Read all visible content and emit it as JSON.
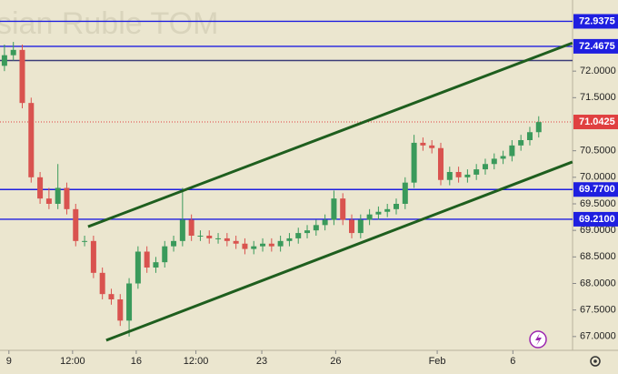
{
  "chart_data": {
    "type": "candlestick",
    "title": "sian Ruble TOM",
    "xlim": [
      -0.5,
      63.8
    ],
    "ylim": [
      66.74,
      73.34
    ],
    "xticks": [
      {
        "value": 0.5,
        "label": "9"
      },
      {
        "value": 7.65,
        "label": "12:00"
      },
      {
        "value": 14.8,
        "label": "16"
      },
      {
        "value": 21.5,
        "label": "12:00"
      },
      {
        "value": 28.9,
        "label": "23"
      },
      {
        "value": 37.2,
        "label": "26"
      },
      {
        "value": 48.6,
        "label": "Feb"
      },
      {
        "value": 57.1,
        "label": "6"
      }
    ],
    "yticks": [
      {
        "value": 72,
        "label": "72.0000"
      },
      {
        "value": 71.5,
        "label": "71.5000"
      },
      {
        "value": 70.5,
        "label": "70.5000"
      },
      {
        "value": 70,
        "label": "70.0000"
      },
      {
        "value": 69.5,
        "label": "69.5000"
      },
      {
        "value": 69,
        "label": "69.0000"
      },
      {
        "value": 68.5,
        "label": "68.5000"
      },
      {
        "value": 68,
        "label": "68.0000"
      },
      {
        "value": 67.5,
        "label": "67.5000"
      },
      {
        "value": 67,
        "label": "67.0000"
      }
    ],
    "up_color": "#3a9a5b",
    "down_color": "#d9534f",
    "open": [
      72.1,
      72.3,
      72.4,
      71.4,
      70.0,
      69.6,
      69.5,
      69.8,
      69.4,
      68.8,
      68.8,
      68.2,
      67.8,
      67.7,
      67.3,
      68.0,
      68.6,
      68.3,
      68.4,
      68.7,
      68.8,
      69.2,
      68.9,
      68.9,
      68.85,
      68.85,
      68.8,
      68.75,
      68.65,
      68.7,
      68.75,
      68.7,
      68.8,
      68.85,
      68.95,
      69.0,
      69.1,
      69.2,
      69.6,
      69.2,
      68.95,
      69.2,
      69.3,
      69.35,
      69.4,
      69.5,
      69.9,
      70.65,
      70.6,
      70.55,
      69.95,
      70.1,
      70.0,
      70.05,
      70.15,
      70.25,
      70.35,
      70.4,
      70.6,
      70.7,
      70.85
    ],
    "high": [
      72.5,
      72.55,
      72.5,
      71.5,
      70.1,
      69.8,
      70.25,
      69.9,
      69.5,
      68.9,
      68.9,
      68.3,
      67.9,
      67.8,
      68.1,
      68.7,
      68.7,
      68.5,
      68.8,
      68.9,
      69.8,
      69.3,
      69.0,
      69.0,
      68.95,
      68.95,
      68.9,
      68.85,
      68.8,
      68.85,
      68.85,
      68.9,
      68.95,
      69.05,
      69.1,
      69.2,
      69.3,
      69.75,
      69.7,
      69.3,
      69.3,
      69.4,
      69.45,
      69.5,
      69.6,
      70.0,
      70.8,
      70.75,
      70.7,
      70.65,
      70.2,
      70.2,
      70.15,
      70.25,
      70.35,
      70.45,
      70.5,
      70.7,
      70.8,
      70.95,
      71.15
    ],
    "low": [
      72.0,
      72.2,
      71.3,
      69.9,
      69.5,
      69.4,
      69.4,
      69.3,
      68.7,
      68.7,
      68.1,
      67.7,
      67.6,
      67.2,
      67.0,
      67.9,
      68.2,
      68.2,
      68.3,
      68.6,
      68.7,
      68.8,
      68.8,
      68.75,
      68.75,
      68.7,
      68.65,
      68.55,
      68.55,
      68.6,
      68.6,
      68.6,
      68.7,
      68.75,
      68.85,
      68.9,
      69.0,
      69.1,
      69.1,
      68.85,
      68.85,
      69.1,
      69.2,
      69.25,
      69.3,
      69.4,
      69.8,
      70.5,
      70.45,
      69.85,
      69.85,
      69.9,
      69.9,
      69.95,
      70.05,
      70.15,
      70.25,
      70.3,
      70.5,
      70.6,
      70.75
    ],
    "close": [
      72.3,
      72.4,
      71.4,
      70.0,
      69.6,
      69.5,
      69.8,
      69.4,
      68.8,
      68.8,
      68.2,
      67.8,
      67.7,
      67.3,
      68.0,
      68.6,
      68.3,
      68.4,
      68.7,
      68.8,
      69.2,
      68.9,
      68.9,
      68.85,
      68.85,
      68.8,
      68.75,
      68.65,
      68.7,
      68.75,
      68.7,
      68.8,
      68.85,
      68.95,
      69.0,
      69.1,
      69.2,
      69.6,
      69.2,
      68.95,
      69.2,
      69.3,
      69.35,
      69.4,
      69.5,
      69.9,
      70.65,
      70.6,
      70.55,
      69.95,
      70.1,
      70.0,
      70.05,
      70.15,
      70.25,
      70.35,
      70.4,
      70.6,
      70.7,
      70.85,
      71.04
    ],
    "levels": [
      {
        "value": 72.9375,
        "label": "72.9375",
        "color": "#1f1fe0"
      },
      {
        "value": 72.4675,
        "label": "72.4675",
        "color": "#1f1fe0"
      },
      {
        "value": 72.2,
        "color": "#3c3c78"
      },
      {
        "value": 71.0425,
        "label": "71.0425",
        "color": "#e04040",
        "dotted": true
      },
      {
        "value": 69.77,
        "label": "69.7700",
        "color": "#1f1fe0"
      },
      {
        "value": 69.21,
        "label": "69.2100",
        "color": "#1f1fe0"
      }
    ],
    "trendlines": [
      {
        "x": [
          9.39,
          63.78
        ],
        "y": [
          69.07,
          72.53
        ],
        "color": "#1e5e1e"
      },
      {
        "x": [
          11.43,
          63.78
        ],
        "y": [
          66.93,
          70.29
        ],
        "color": "#1e5e1e"
      }
    ]
  }
}
